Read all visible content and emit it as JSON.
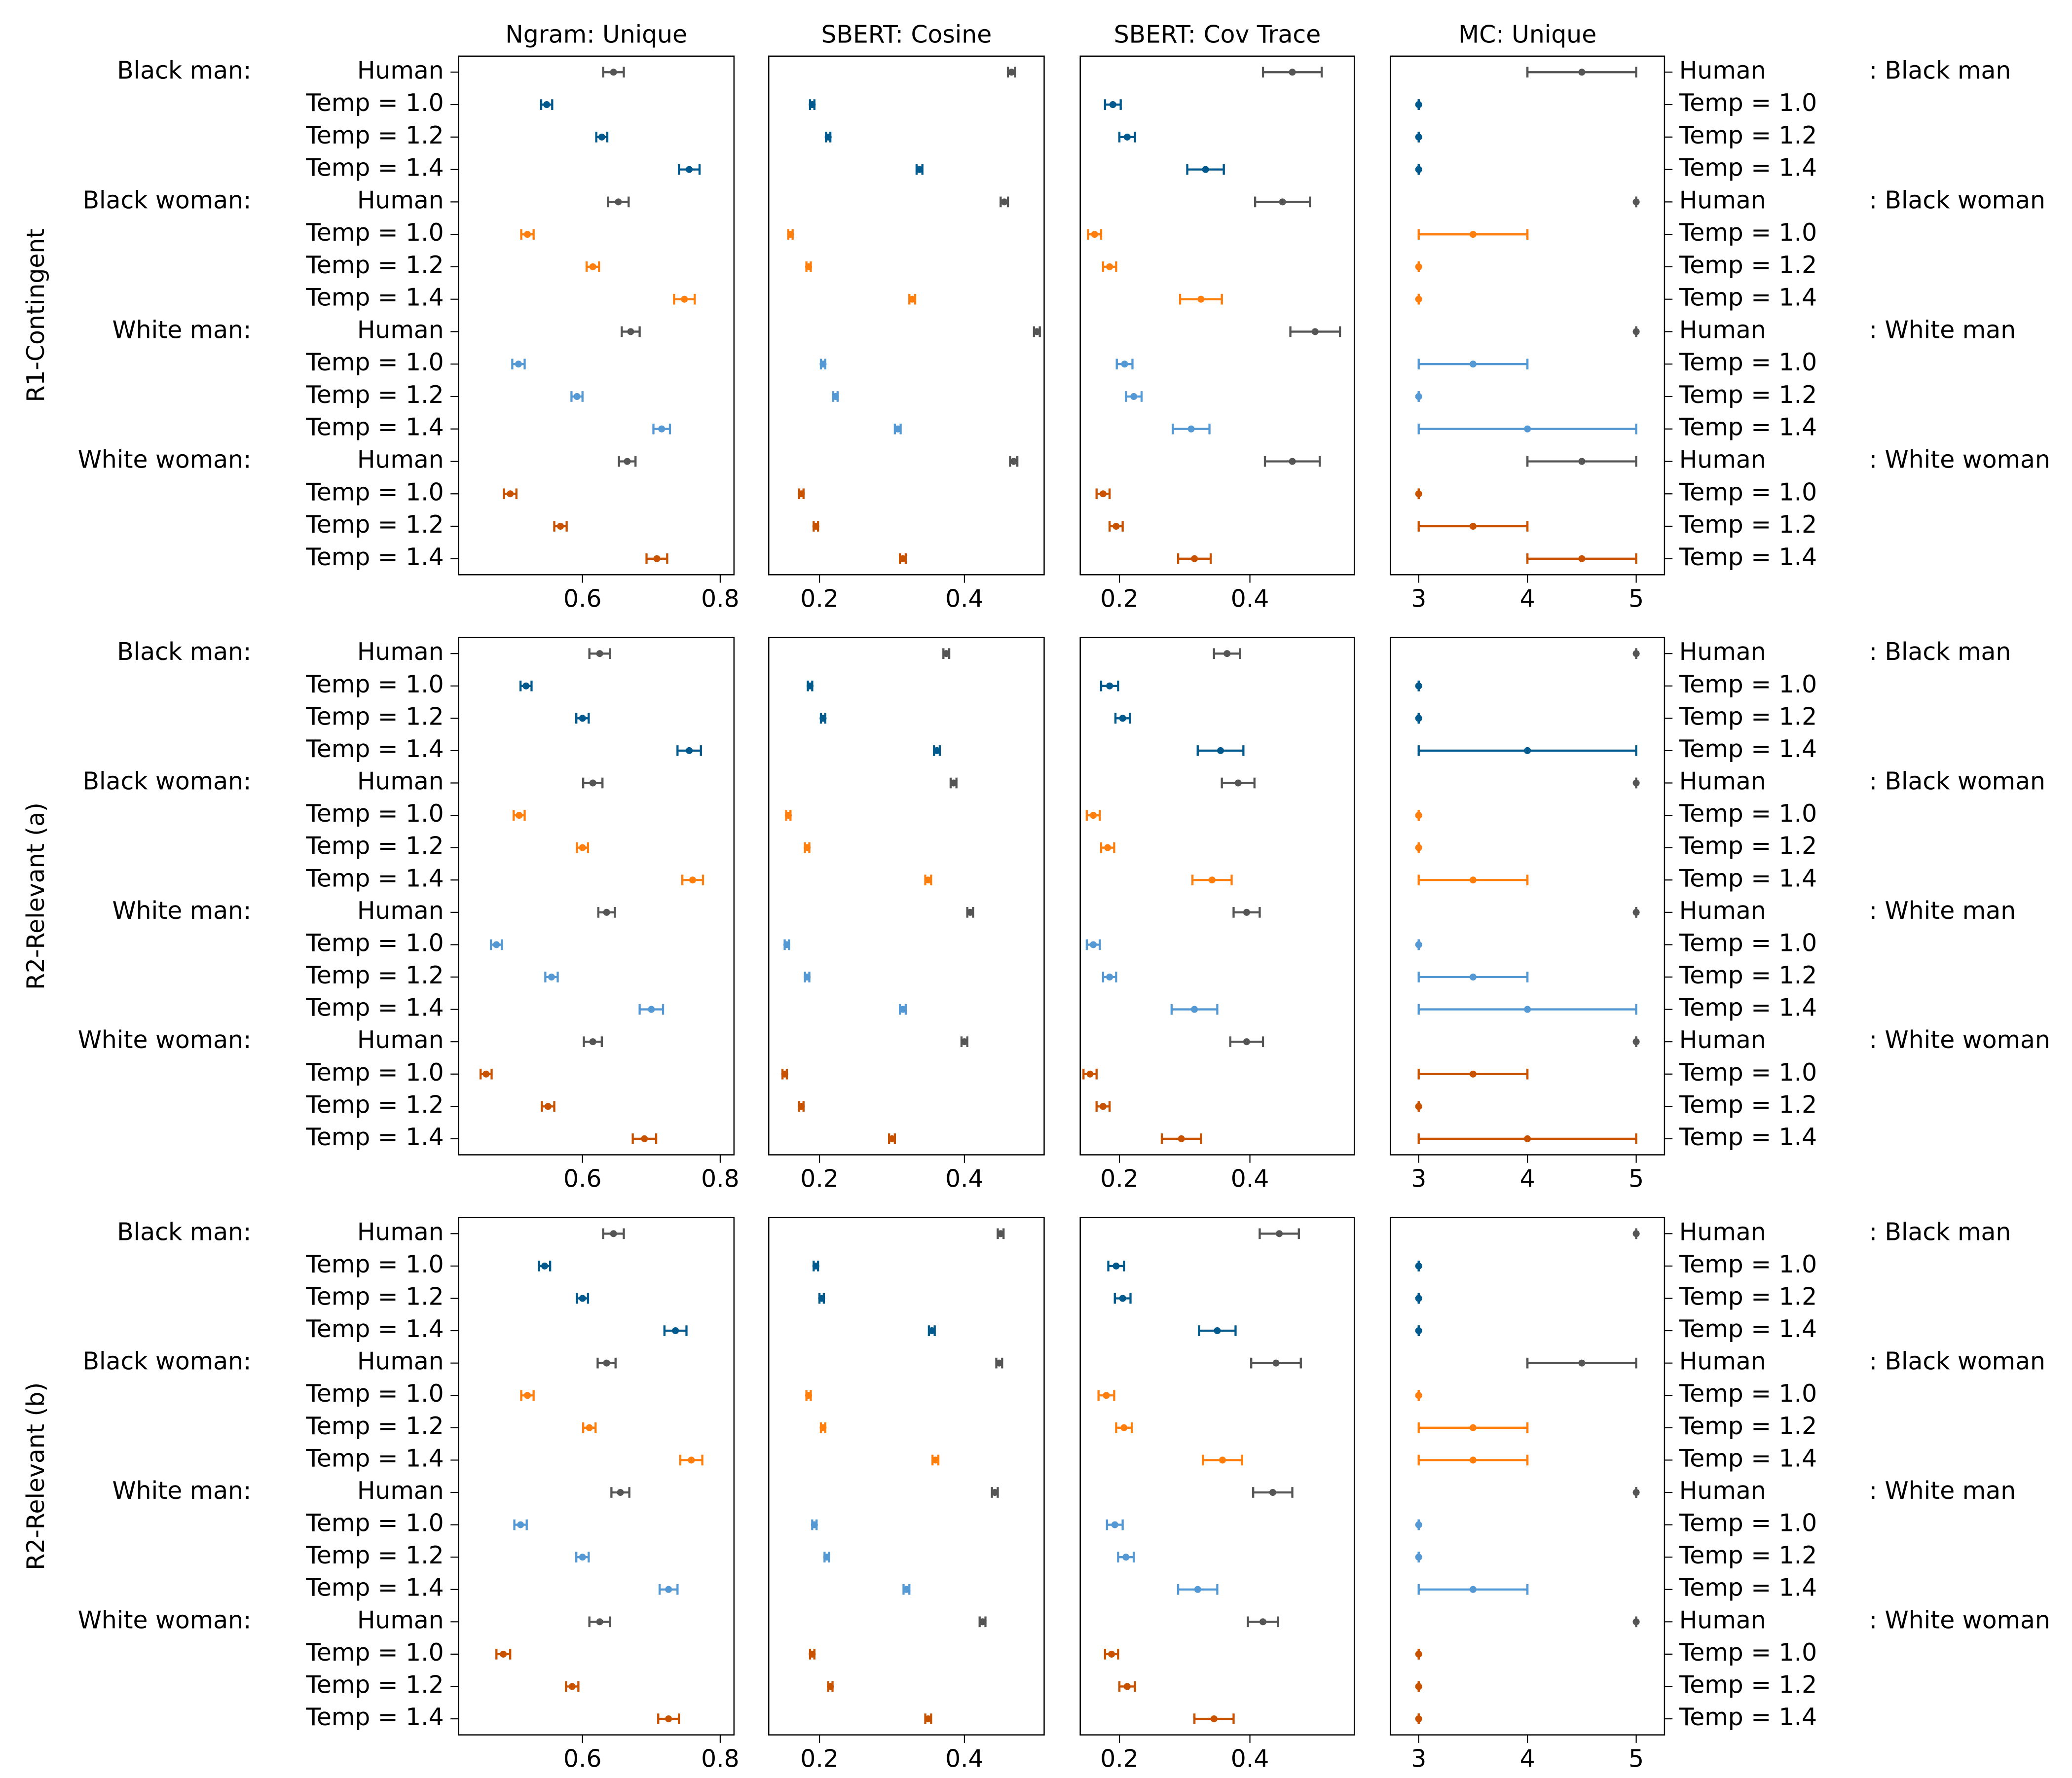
{
  "chart_data": {
    "type": "errorbar",
    "panel_titles": [
      "Ngram: Unique",
      "SBERT: Cosine",
      "SBERT: Cov Trace",
      "MC: Unique"
    ],
    "row_titles": [
      "R1-Contingent",
      "R2-Relevant (a)",
      "R2-Relevant (b)"
    ],
    "groups": [
      "Black man:",
      "Black woman:",
      "White man:",
      "White woman:"
    ],
    "groups_right": [
      ": Black man",
      ": Black woman",
      ": White man",
      ": White woman"
    ],
    "conditions": [
      "Human",
      "Temp = 1.0",
      "Temp = 1.2",
      "Temp = 1.4"
    ],
    "group_colors": [
      "#005a8d",
      "#ff7f0e",
      "#5599d4",
      "#c85200"
    ],
    "human_color": "#555555",
    "axes": [
      {
        "xlim": [
          0.42,
          0.82
        ],
        "ticks": [
          0.6,
          0.8
        ],
        "tick_labels": [
          "0.6",
          "0.8"
        ]
      },
      {
        "xlim": [
          0.13,
          0.51
        ],
        "ticks": [
          0.2,
          0.4
        ],
        "tick_labels": [
          "0.2",
          "0.4"
        ]
      },
      {
        "xlim": [
          0.14,
          0.56
        ],
        "ticks": [
          0.2,
          0.4
        ],
        "tick_labels": [
          "0.2",
          "0.4"
        ]
      },
      {
        "xlim": [
          2.74,
          5.26
        ],
        "ticks": [
          3,
          4,
          5
        ],
        "tick_labels": [
          "3",
          "4",
          "5"
        ]
      }
    ],
    "data": [
      [
        [
          [
            0.645,
            0.015
          ],
          [
            0.548,
            0.008
          ],
          [
            0.628,
            0.008
          ],
          [
            0.755,
            0.015
          ],
          [
            0.652,
            0.015
          ],
          [
            0.52,
            0.009
          ],
          [
            0.615,
            0.009
          ],
          [
            0.748,
            0.015
          ],
          [
            0.67,
            0.013
          ],
          [
            0.507,
            0.009
          ],
          [
            0.592,
            0.008
          ],
          [
            0.715,
            0.012
          ],
          [
            0.665,
            0.012
          ],
          [
            0.495,
            0.009
          ],
          [
            0.568,
            0.009
          ],
          [
            0.708,
            0.015
          ]
        ],
        [
          [
            0.465,
            0.005
          ],
          [
            0.19,
            0.003
          ],
          [
            0.212,
            0.003
          ],
          [
            0.338,
            0.004
          ],
          [
            0.455,
            0.005
          ],
          [
            0.16,
            0.003
          ],
          [
            0.185,
            0.003
          ],
          [
            0.328,
            0.004
          ],
          [
            0.5,
            0.004
          ],
          [
            0.205,
            0.003
          ],
          [
            0.222,
            0.003
          ],
          [
            0.308,
            0.004
          ],
          [
            0.468,
            0.005
          ],
          [
            0.175,
            0.003
          ],
          [
            0.195,
            0.003
          ],
          [
            0.315,
            0.004
          ]
        ],
        [
          [
            0.465,
            0.045
          ],
          [
            0.19,
            0.012
          ],
          [
            0.212,
            0.012
          ],
          [
            0.332,
            0.028
          ],
          [
            0.45,
            0.042
          ],
          [
            0.162,
            0.01
          ],
          [
            0.185,
            0.01
          ],
          [
            0.325,
            0.032
          ],
          [
            0.5,
            0.038
          ],
          [
            0.208,
            0.012
          ],
          [
            0.222,
            0.012
          ],
          [
            0.31,
            0.028
          ],
          [
            0.465,
            0.042
          ],
          [
            0.175,
            0.01
          ],
          [
            0.195,
            0.01
          ],
          [
            0.315,
            0.025
          ]
        ],
        [
          [
            4.5,
            0.5
          ],
          [
            3,
            0
          ],
          [
            3,
            0
          ],
          [
            3,
            0
          ],
          [
            5,
            0
          ],
          [
            3.5,
            0.5
          ],
          [
            3,
            0
          ],
          [
            3,
            0
          ],
          [
            5,
            0
          ],
          [
            3.5,
            0.5
          ],
          [
            3,
            0
          ],
          [
            4,
            1
          ],
          [
            4.5,
            0.5
          ],
          [
            3,
            0
          ],
          [
            3.5,
            0.5
          ],
          [
            4.5,
            0.5
          ]
        ]
      ],
      [
        [
          [
            0.625,
            0.015
          ],
          [
            0.518,
            0.008
          ],
          [
            0.6,
            0.009
          ],
          [
            0.755,
            0.017
          ],
          [
            0.615,
            0.014
          ],
          [
            0.508,
            0.008
          ],
          [
            0.6,
            0.008
          ],
          [
            0.76,
            0.015
          ],
          [
            0.635,
            0.012
          ],
          [
            0.475,
            0.008
          ],
          [
            0.555,
            0.009
          ],
          [
            0.7,
            0.017
          ],
          [
            0.615,
            0.013
          ],
          [
            0.46,
            0.008
          ],
          [
            0.55,
            0.009
          ],
          [
            0.69,
            0.017
          ]
        ],
        [
          [
            0.375,
            0.004
          ],
          [
            0.187,
            0.003
          ],
          [
            0.205,
            0.003
          ],
          [
            0.362,
            0.004
          ],
          [
            0.385,
            0.004
          ],
          [
            0.157,
            0.003
          ],
          [
            0.183,
            0.003
          ],
          [
            0.35,
            0.004
          ],
          [
            0.408,
            0.004
          ],
          [
            0.155,
            0.003
          ],
          [
            0.183,
            0.003
          ],
          [
            0.315,
            0.004
          ],
          [
            0.4,
            0.004
          ],
          [
            0.152,
            0.003
          ],
          [
            0.175,
            0.003
          ],
          [
            0.3,
            0.004
          ]
        ],
        [
          [
            0.365,
            0.02
          ],
          [
            0.185,
            0.013
          ],
          [
            0.205,
            0.011
          ],
          [
            0.355,
            0.035
          ],
          [
            0.382,
            0.025
          ],
          [
            0.16,
            0.01
          ],
          [
            0.182,
            0.01
          ],
          [
            0.342,
            0.03
          ],
          [
            0.395,
            0.02
          ],
          [
            0.16,
            0.01
          ],
          [
            0.185,
            0.01
          ],
          [
            0.315,
            0.035
          ],
          [
            0.395,
            0.025
          ],
          [
            0.155,
            0.01
          ],
          [
            0.175,
            0.01
          ],
          [
            0.295,
            0.03
          ]
        ],
        [
          [
            5,
            0
          ],
          [
            3,
            0
          ],
          [
            3,
            0
          ],
          [
            4,
            1
          ],
          [
            5,
            0
          ],
          [
            3,
            0
          ],
          [
            3,
            0
          ],
          [
            3.5,
            0.5
          ],
          [
            5,
            0
          ],
          [
            3,
            0
          ],
          [
            3.5,
            0.5
          ],
          [
            4,
            1
          ],
          [
            5,
            0
          ],
          [
            3.5,
            0.5
          ],
          [
            3,
            0
          ],
          [
            4,
            1
          ]
        ]
      ],
      [
        [
          [
            0.645,
            0.015
          ],
          [
            0.545,
            0.008
          ],
          [
            0.6,
            0.008
          ],
          [
            0.735,
            0.016
          ],
          [
            0.635,
            0.013
          ],
          [
            0.52,
            0.009
          ],
          [
            0.61,
            0.009
          ],
          [
            0.758,
            0.016
          ],
          [
            0.655,
            0.013
          ],
          [
            0.51,
            0.009
          ],
          [
            0.6,
            0.009
          ],
          [
            0.725,
            0.013
          ],
          [
            0.625,
            0.015
          ],
          [
            0.485,
            0.01
          ],
          [
            0.585,
            0.009
          ],
          [
            0.725,
            0.015
          ]
        ],
        [
          [
            0.45,
            0.004
          ],
          [
            0.195,
            0.003
          ],
          [
            0.203,
            0.003
          ],
          [
            0.355,
            0.004
          ],
          [
            0.448,
            0.004
          ],
          [
            0.185,
            0.003
          ],
          [
            0.205,
            0.003
          ],
          [
            0.36,
            0.004
          ],
          [
            0.442,
            0.004
          ],
          [
            0.193,
            0.003
          ],
          [
            0.21,
            0.003
          ],
          [
            0.32,
            0.004
          ],
          [
            0.425,
            0.004
          ],
          [
            0.19,
            0.003
          ],
          [
            0.215,
            0.003
          ],
          [
            0.35,
            0.004
          ]
        ],
        [
          [
            0.445,
            0.03
          ],
          [
            0.195,
            0.012
          ],
          [
            0.205,
            0.012
          ],
          [
            0.35,
            0.028
          ],
          [
            0.44,
            0.038
          ],
          [
            0.18,
            0.012
          ],
          [
            0.207,
            0.012
          ],
          [
            0.358,
            0.03
          ],
          [
            0.435,
            0.03
          ],
          [
            0.193,
            0.012
          ],
          [
            0.21,
            0.012
          ],
          [
            0.32,
            0.03
          ],
          [
            0.42,
            0.023
          ],
          [
            0.188,
            0.01
          ],
          [
            0.212,
            0.012
          ],
          [
            0.345,
            0.03
          ]
        ],
        [
          [
            5,
            0
          ],
          [
            3,
            0
          ],
          [
            3,
            0
          ],
          [
            3,
            0
          ],
          [
            4.5,
            0.5
          ],
          [
            3,
            0
          ],
          [
            3.5,
            0.5
          ],
          [
            3.5,
            0.5
          ],
          [
            5,
            0
          ],
          [
            3,
            0
          ],
          [
            3,
            0
          ],
          [
            3.5,
            0.5
          ],
          [
            5,
            0
          ],
          [
            3,
            0
          ],
          [
            3,
            0
          ],
          [
            3,
            0
          ]
        ]
      ]
    ]
  }
}
